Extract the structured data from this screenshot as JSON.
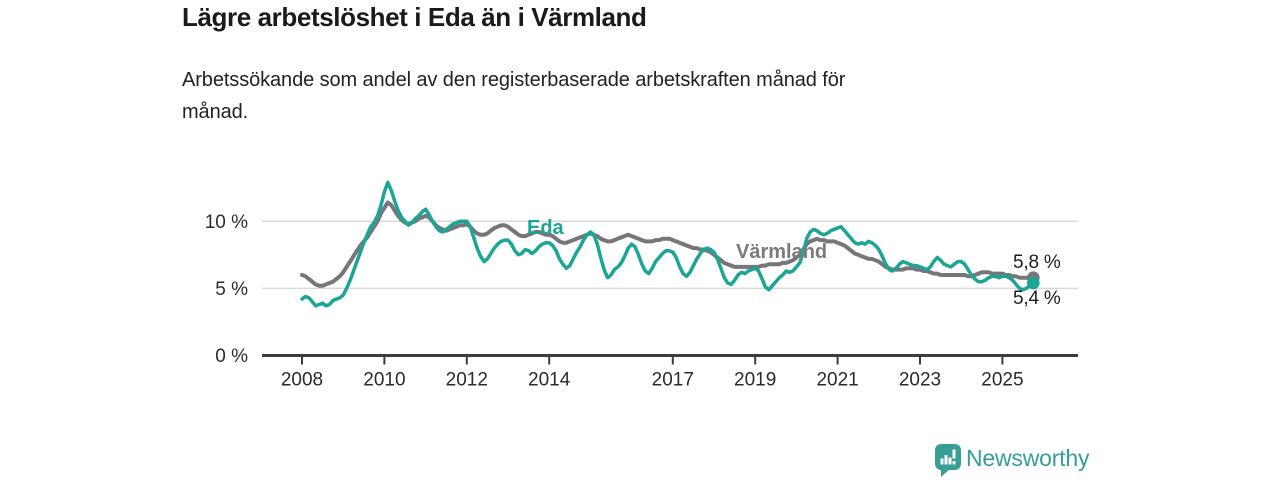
{
  "header": {
    "title": "Lägre arbetslöshet i Eda än i Värmland",
    "subtitle_lines": [
      "Arbetssökande som andel av den registerbaserade arbetskraften månad för",
      "månad."
    ]
  },
  "footer": {
    "brand": "Newsworthy",
    "brand_color": "#369e96"
  },
  "colors": {
    "eda_teal": "#1ba596",
    "varmland_gray": "#767679",
    "gridline": "#d9d9d9",
    "axis": "#3c3c3c",
    "text_dark": "#1d1d1d"
  },
  "chart_data": {
    "type": "line",
    "unit": "%",
    "x_start_year": 2008,
    "points_per_year": 12,
    "x_ticks": [
      2008,
      2010,
      2012,
      2014,
      2017,
      2019,
      2021,
      2023,
      2025
    ],
    "y_ticks": [
      {
        "value": 10,
        "label": "10 %"
      },
      {
        "value": 5,
        "label": "5 %"
      },
      {
        "value": 0,
        "label": "0 %"
      }
    ],
    "y_gridlines": [
      10,
      5
    ],
    "ylim": [
      0,
      14
    ],
    "legend_position": "inline-labels",
    "grid": "horizontal-only",
    "series": [
      {
        "name": "Värmland",
        "label": "Värmland",
        "color": "#767679",
        "stroke_width": 4,
        "end_value_label": "5,8 %",
        "values": [
          6.0,
          5.9,
          5.7,
          5.5,
          5.3,
          5.2,
          5.2,
          5.3,
          5.4,
          5.5,
          5.7,
          5.9,
          6.2,
          6.6,
          7.0,
          7.4,
          7.8,
          8.2,
          8.5,
          8.8,
          9.2,
          9.6,
          10.0,
          10.6,
          11.0,
          11.4,
          11.2,
          10.8,
          10.4,
          10.1,
          9.9,
          9.8,
          9.9,
          10.0,
          10.2,
          10.3,
          10.4,
          10.3,
          10.0,
          9.7,
          9.5,
          9.4,
          9.3,
          9.4,
          9.5,
          9.6,
          9.7,
          9.7,
          9.8,
          9.6,
          9.3,
          9.1,
          9.0,
          9.0,
          9.1,
          9.3,
          9.5,
          9.6,
          9.7,
          9.7,
          9.6,
          9.4,
          9.2,
          9.0,
          8.9,
          8.9,
          9.0,
          9.1,
          9.2,
          9.2,
          9.1,
          9.0,
          9.0,
          8.9,
          8.7,
          8.5,
          8.4,
          8.4,
          8.5,
          8.6,
          8.7,
          8.8,
          8.9,
          9.0,
          9.1,
          9.0,
          8.9,
          8.7,
          8.6,
          8.5,
          8.5,
          8.6,
          8.7,
          8.8,
          8.9,
          9.0,
          8.9,
          8.8,
          8.7,
          8.6,
          8.5,
          8.5,
          8.5,
          8.6,
          8.6,
          8.7,
          8.7,
          8.7,
          8.6,
          8.5,
          8.4,
          8.3,
          8.2,
          8.1,
          8.0,
          8.0,
          7.9,
          7.9,
          7.8,
          7.7,
          7.5,
          7.3,
          7.1,
          6.9,
          6.8,
          6.7,
          6.6,
          6.6,
          6.6,
          6.6,
          6.6,
          6.6,
          6.6,
          6.6,
          6.7,
          6.7,
          6.8,
          6.8,
          6.8,
          6.8,
          6.9,
          6.9,
          7.0,
          7.1,
          7.3,
          7.5,
          7.9,
          8.3,
          8.5,
          8.6,
          8.7,
          8.6,
          8.6,
          8.5,
          8.5,
          8.5,
          8.4,
          8.3,
          8.2,
          8.0,
          7.8,
          7.6,
          7.5,
          7.4,
          7.3,
          7.2,
          7.2,
          7.1,
          7.0,
          6.8,
          6.6,
          6.5,
          6.4,
          6.4,
          6.4,
          6.4,
          6.5,
          6.5,
          6.5,
          6.4,
          6.4,
          6.3,
          6.3,
          6.2,
          6.1,
          6.1,
          6.0,
          6.0,
          6.0,
          6.0,
          6.0,
          6.0,
          6.0,
          6.0,
          5.9,
          5.9,
          6.0,
          6.1,
          6.2,
          6.2,
          6.2,
          6.1,
          6.1,
          6.1,
          6.1,
          6.0,
          6.0,
          5.9,
          5.9,
          5.8,
          5.8,
          5.8,
          5.8,
          5.8
        ]
      },
      {
        "name": "Eda",
        "label": "Eda",
        "color": "#1ba596",
        "stroke_width": 3.5,
        "end_value_label": "5,4 %",
        "values": [
          4.2,
          4.4,
          4.3,
          4.0,
          3.7,
          3.8,
          3.9,
          3.7,
          3.8,
          4.1,
          4.2,
          4.3,
          4.5,
          5.0,
          5.6,
          6.3,
          7.0,
          7.7,
          8.4,
          9.0,
          9.6,
          9.9,
          10.4,
          11.2,
          12.2,
          12.9,
          12.3,
          11.5,
          10.8,
          10.3,
          10.0,
          9.7,
          9.9,
          10.2,
          10.4,
          10.7,
          10.9,
          10.5,
          10.0,
          9.6,
          9.3,
          9.2,
          9.4,
          9.6,
          9.8,
          9.9,
          10.0,
          10.0,
          10.0,
          9.6,
          8.8,
          8.0,
          7.4,
          7.0,
          7.2,
          7.6,
          8.0,
          8.3,
          8.5,
          8.6,
          8.6,
          8.3,
          7.8,
          7.5,
          7.6,
          7.9,
          7.8,
          7.6,
          7.8,
          8.1,
          8.3,
          8.4,
          8.4,
          8.2,
          7.8,
          7.2,
          6.8,
          6.5,
          6.7,
          7.2,
          7.7,
          8.1,
          8.6,
          9.0,
          9.2,
          9.0,
          8.3,
          7.3,
          6.4,
          5.8,
          6.0,
          6.4,
          6.6,
          6.9,
          7.4,
          8.0,
          8.3,
          8.1,
          7.5,
          6.8,
          6.3,
          6.1,
          6.5,
          7.0,
          7.3,
          7.6,
          7.8,
          7.8,
          7.7,
          7.3,
          6.6,
          6.1,
          5.9,
          6.2,
          6.7,
          7.2,
          7.6,
          7.9,
          8.0,
          7.9,
          7.7,
          7.2,
          6.5,
          5.8,
          5.4,
          5.3,
          5.6,
          6.0,
          6.2,
          6.1,
          6.3,
          6.4,
          6.5,
          6.3,
          5.7,
          5.1,
          4.9,
          5.2,
          5.5,
          5.8,
          6.0,
          6.3,
          6.2,
          6.3,
          6.6,
          6.9,
          7.7,
          8.7,
          9.2,
          9.4,
          9.3,
          9.1,
          9.0,
          9.1,
          9.3,
          9.4,
          9.5,
          9.6,
          9.3,
          9.0,
          8.7,
          8.4,
          8.3,
          8.4,
          8.3,
          8.5,
          8.4,
          8.2,
          7.9,
          7.4,
          6.8,
          6.4,
          6.3,
          6.5,
          6.8,
          7.0,
          6.9,
          6.8,
          6.7,
          6.7,
          6.6,
          6.5,
          6.4,
          6.6,
          7.0,
          7.3,
          7.1,
          6.8,
          6.7,
          6.6,
          6.8,
          7.0,
          7.0,
          6.8,
          6.4,
          6.0,
          5.7,
          5.5,
          5.5,
          5.6,
          5.8,
          5.9,
          5.9,
          5.8,
          5.9,
          5.9,
          5.8,
          5.6,
          5.3,
          5.0,
          4.9,
          5.0,
          5.2,
          5.4
        ]
      }
    ]
  }
}
